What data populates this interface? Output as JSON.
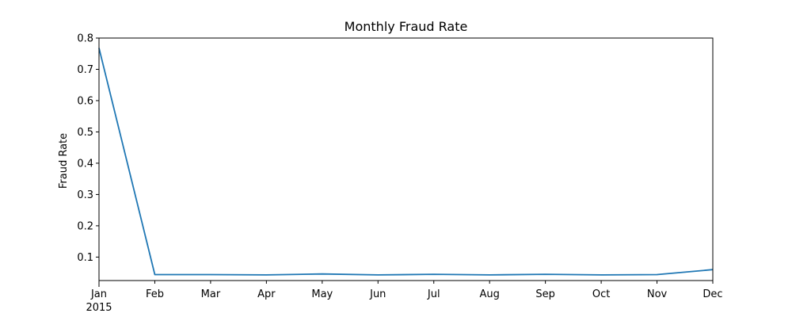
{
  "chart_data": {
    "type": "line",
    "title": "Monthly Fraud Rate",
    "xlabel": "",
    "ylabel": "Fraud Rate",
    "x": [
      "Jan",
      "Feb",
      "Mar",
      "Apr",
      "May",
      "Jun",
      "Jul",
      "Aug",
      "Sep",
      "Oct",
      "Nov",
      "Dec"
    ],
    "x_year_label": "2015",
    "ylim": [
      0.025,
      0.8
    ],
    "yticks": [
      "0.1",
      "0.2",
      "0.3",
      "0.4",
      "0.5",
      "0.6",
      "0.7",
      "0.8"
    ],
    "grid": false,
    "legend": "none",
    "series": [
      {
        "color": "#1f77b4",
        "values": [
          0.768,
          0.044,
          0.044,
          0.043,
          0.046,
          0.043,
          0.045,
          0.043,
          0.045,
          0.043,
          0.044,
          0.06
        ]
      }
    ]
  }
}
